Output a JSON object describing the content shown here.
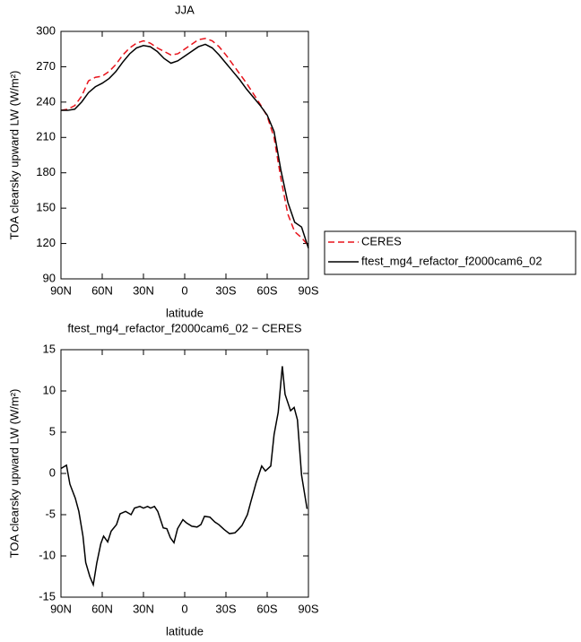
{
  "chart_data": [
    {
      "type": "line",
      "title": "JJA",
      "xlabel": "latitude",
      "ylabel": "TOA clearsky upward LW (W/m²)",
      "x": [
        90,
        85,
        80,
        75,
        70,
        65,
        60,
        55,
        50,
        45,
        40,
        35,
        30,
        25,
        20,
        15,
        10,
        5,
        0,
        -5,
        -10,
        -15,
        -20,
        -25,
        -30,
        -35,
        -40,
        -45,
        -50,
        -55,
        -60,
        -65,
        -70,
        -75,
        -80,
        -85,
        -90
      ],
      "series": [
        {
          "name": "CERES",
          "color": "#e8141c",
          "linestyle": "dashed",
          "values": [
            233,
            234,
            237,
            245,
            258,
            261,
            262,
            266,
            272,
            280,
            286,
            290,
            292,
            290,
            286,
            283,
            280,
            281,
            285,
            289,
            293,
            294,
            292,
            287,
            280,
            272,
            264,
            256,
            247,
            238,
            228,
            210,
            175,
            145,
            130,
            125,
            118
          ]
        },
        {
          "name": "ftest_mg4_refactor_f2000cam6_02",
          "color": "#000000",
          "linestyle": "solid",
          "values": [
            233,
            233,
            234,
            240,
            248,
            253,
            256,
            260,
            266,
            274,
            281,
            286,
            288,
            287,
            283,
            277,
            273,
            275,
            279,
            283,
            287,
            289,
            286,
            280,
            273,
            266,
            259,
            251,
            244,
            237,
            229,
            215,
            182,
            155,
            138,
            134,
            116
          ]
        }
      ],
      "xlim": [
        90,
        -90
      ],
      "xticks": [
        {
          "value": 90,
          "label": "90N"
        },
        {
          "value": 60,
          "label": "60N"
        },
        {
          "value": 30,
          "label": "30N"
        },
        0,
        {
          "value": -30,
          "label": "30S"
        },
        {
          "value": -60,
          "label": "60S"
        },
        {
          "value": -90,
          "label": "90S"
        }
      ],
      "ylim": [
        90,
        300
      ],
      "yticks": [
        90,
        120,
        150,
        180,
        210,
        240,
        270,
        300
      ]
    },
    {
      "type": "line",
      "title": "ftest_mg4_refactor_f2000cam6_02 − CERES",
      "xlabel": "latitude",
      "ylabel": "TOA clearsky upward LW (W/m²)",
      "x": [
        90,
        86,
        83.5,
        79.6,
        77,
        74,
        72,
        69,
        66.5,
        64,
        61,
        59,
        56,
        53.5,
        49.6,
        47,
        43,
        39,
        36.5,
        32.6,
        30,
        27,
        24.8,
        22,
        19.6,
        15.6,
        13,
        10.4,
        7.8,
        5.2,
        1.3,
        -1.3,
        -5.2,
        -9,
        -11.8,
        -14.4,
        -18.3,
        -22,
        -24.8,
        -28.7,
        -32.6,
        -36.5,
        -39,
        -41.7,
        -45.6,
        -48,
        -52,
        -56,
        -58.7,
        -62.6,
        -65,
        -68,
        -71,
        -73,
        -77,
        -79.6,
        -82,
        -85,
        -89
      ],
      "values": [
        0.6,
        1.0,
        -1.3,
        -3,
        -4.6,
        -7.6,
        -10.8,
        -12.5,
        -13.5,
        -10.9,
        -8.5,
        -7.6,
        -8.3,
        -7,
        -6.2,
        -4.9,
        -4.6,
        -5,
        -4.2,
        -4,
        -4.2,
        -4,
        -4.2,
        -4,
        -4.6,
        -6.6,
        -6.7,
        -7.8,
        -8.4,
        -6.7,
        -5.6,
        -6,
        -6.4,
        -6.5,
        -6.2,
        -5.2,
        -5.3,
        -5.9,
        -6.2,
        -6.8,
        -7.3,
        -7.2,
        -6.8,
        -6.3,
        -5,
        -3.5,
        -1.1,
        0.9,
        0.3,
        0.9,
        4.7,
        7.4,
        13.0,
        9.6,
        7.6,
        8,
        6.5,
        -0.2,
        -4.3
      ],
      "color": "#000000",
      "xlim": [
        90,
        -90
      ],
      "xticks": [
        {
          "value": 90,
          "label": "90N"
        },
        {
          "value": 60,
          "label": "60N"
        },
        {
          "value": 30,
          "label": "30N"
        },
        0,
        {
          "value": -30,
          "label": "30S"
        },
        {
          "value": -60,
          "label": "60S"
        },
        {
          "value": -90,
          "label": "90S"
        }
      ],
      "ylim": [
        -15,
        15
      ],
      "yticks": [
        -15,
        -10,
        -5,
        0,
        5,
        10,
        15
      ]
    }
  ]
}
